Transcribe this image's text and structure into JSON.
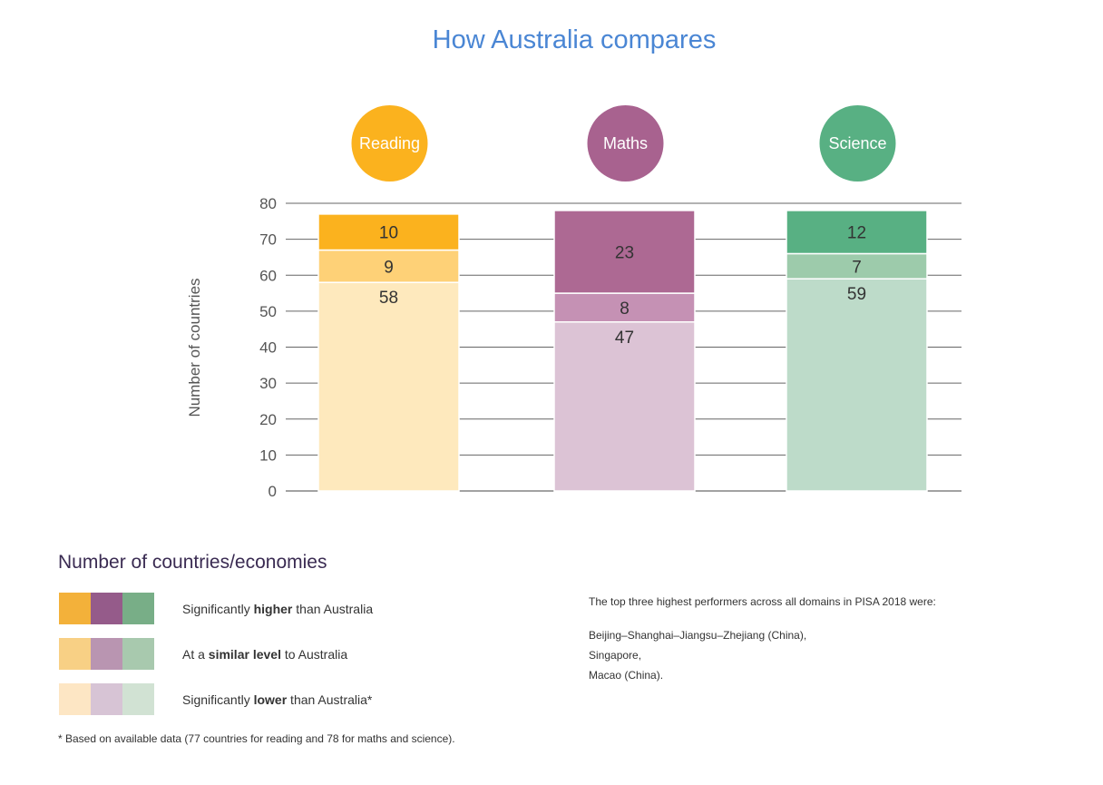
{
  "chart_data": {
    "type": "bar",
    "stacked": true,
    "title": "How Australia compares",
    "ylabel": "Number of countries",
    "xlabel": "",
    "ylim": [
      0,
      80
    ],
    "yticks": [
      0,
      10,
      20,
      30,
      40,
      50,
      60,
      70,
      80
    ],
    "grid": true,
    "categories": [
      "Reading",
      "Maths",
      "Science"
    ],
    "category_colors": [
      "#fbb21e",
      "#a8628f",
      "#58b083"
    ],
    "series": [
      {
        "name": "Significantly lower than Australia*",
        "values": [
          58,
          47,
          59
        ],
        "colors": [
          "#fee9bd",
          "#dcc3d5",
          "#bddbc9"
        ]
      },
      {
        "name": "At a similar level to Australia",
        "values": [
          9,
          8,
          7
        ],
        "colors": [
          "#fed177",
          "#c591b4",
          "#9dcbab"
        ]
      },
      {
        "name": "Significantly higher than Australia",
        "values": [
          10,
          23,
          12
        ],
        "colors": [
          "#fbb21e",
          "#ad6993",
          "#58b083"
        ]
      }
    ]
  },
  "legend": {
    "title": "Number of countries/economies",
    "rows": [
      {
        "pre": "Significantly ",
        "bold": "higher",
        "post": " than Australia",
        "colors": [
          "#f3b13a",
          "#955b8a",
          "#78ae87"
        ]
      },
      {
        "pre": "At a ",
        "bold": "similar level",
        "post": " to Australia",
        "colors": [
          "#f8d085",
          "#b995b1",
          "#a8c9ae"
        ]
      },
      {
        "pre": "Significantly ",
        "bold": "lower",
        "post": " than Australia*",
        "colors": [
          "#fde6c4",
          "#d7c4d5",
          "#d1e2d3"
        ]
      }
    ],
    "footnote": "* Based on available data (77 countries for reading and 78 for maths and science)."
  },
  "note": {
    "heading": "The top three highest performers across all domains in PISA 2018 were:",
    "lines": [
      "Beijing–Shanghai–Jiangsu–Zhejiang (China),",
      "Singapore,",
      "Macao (China)."
    ]
  }
}
